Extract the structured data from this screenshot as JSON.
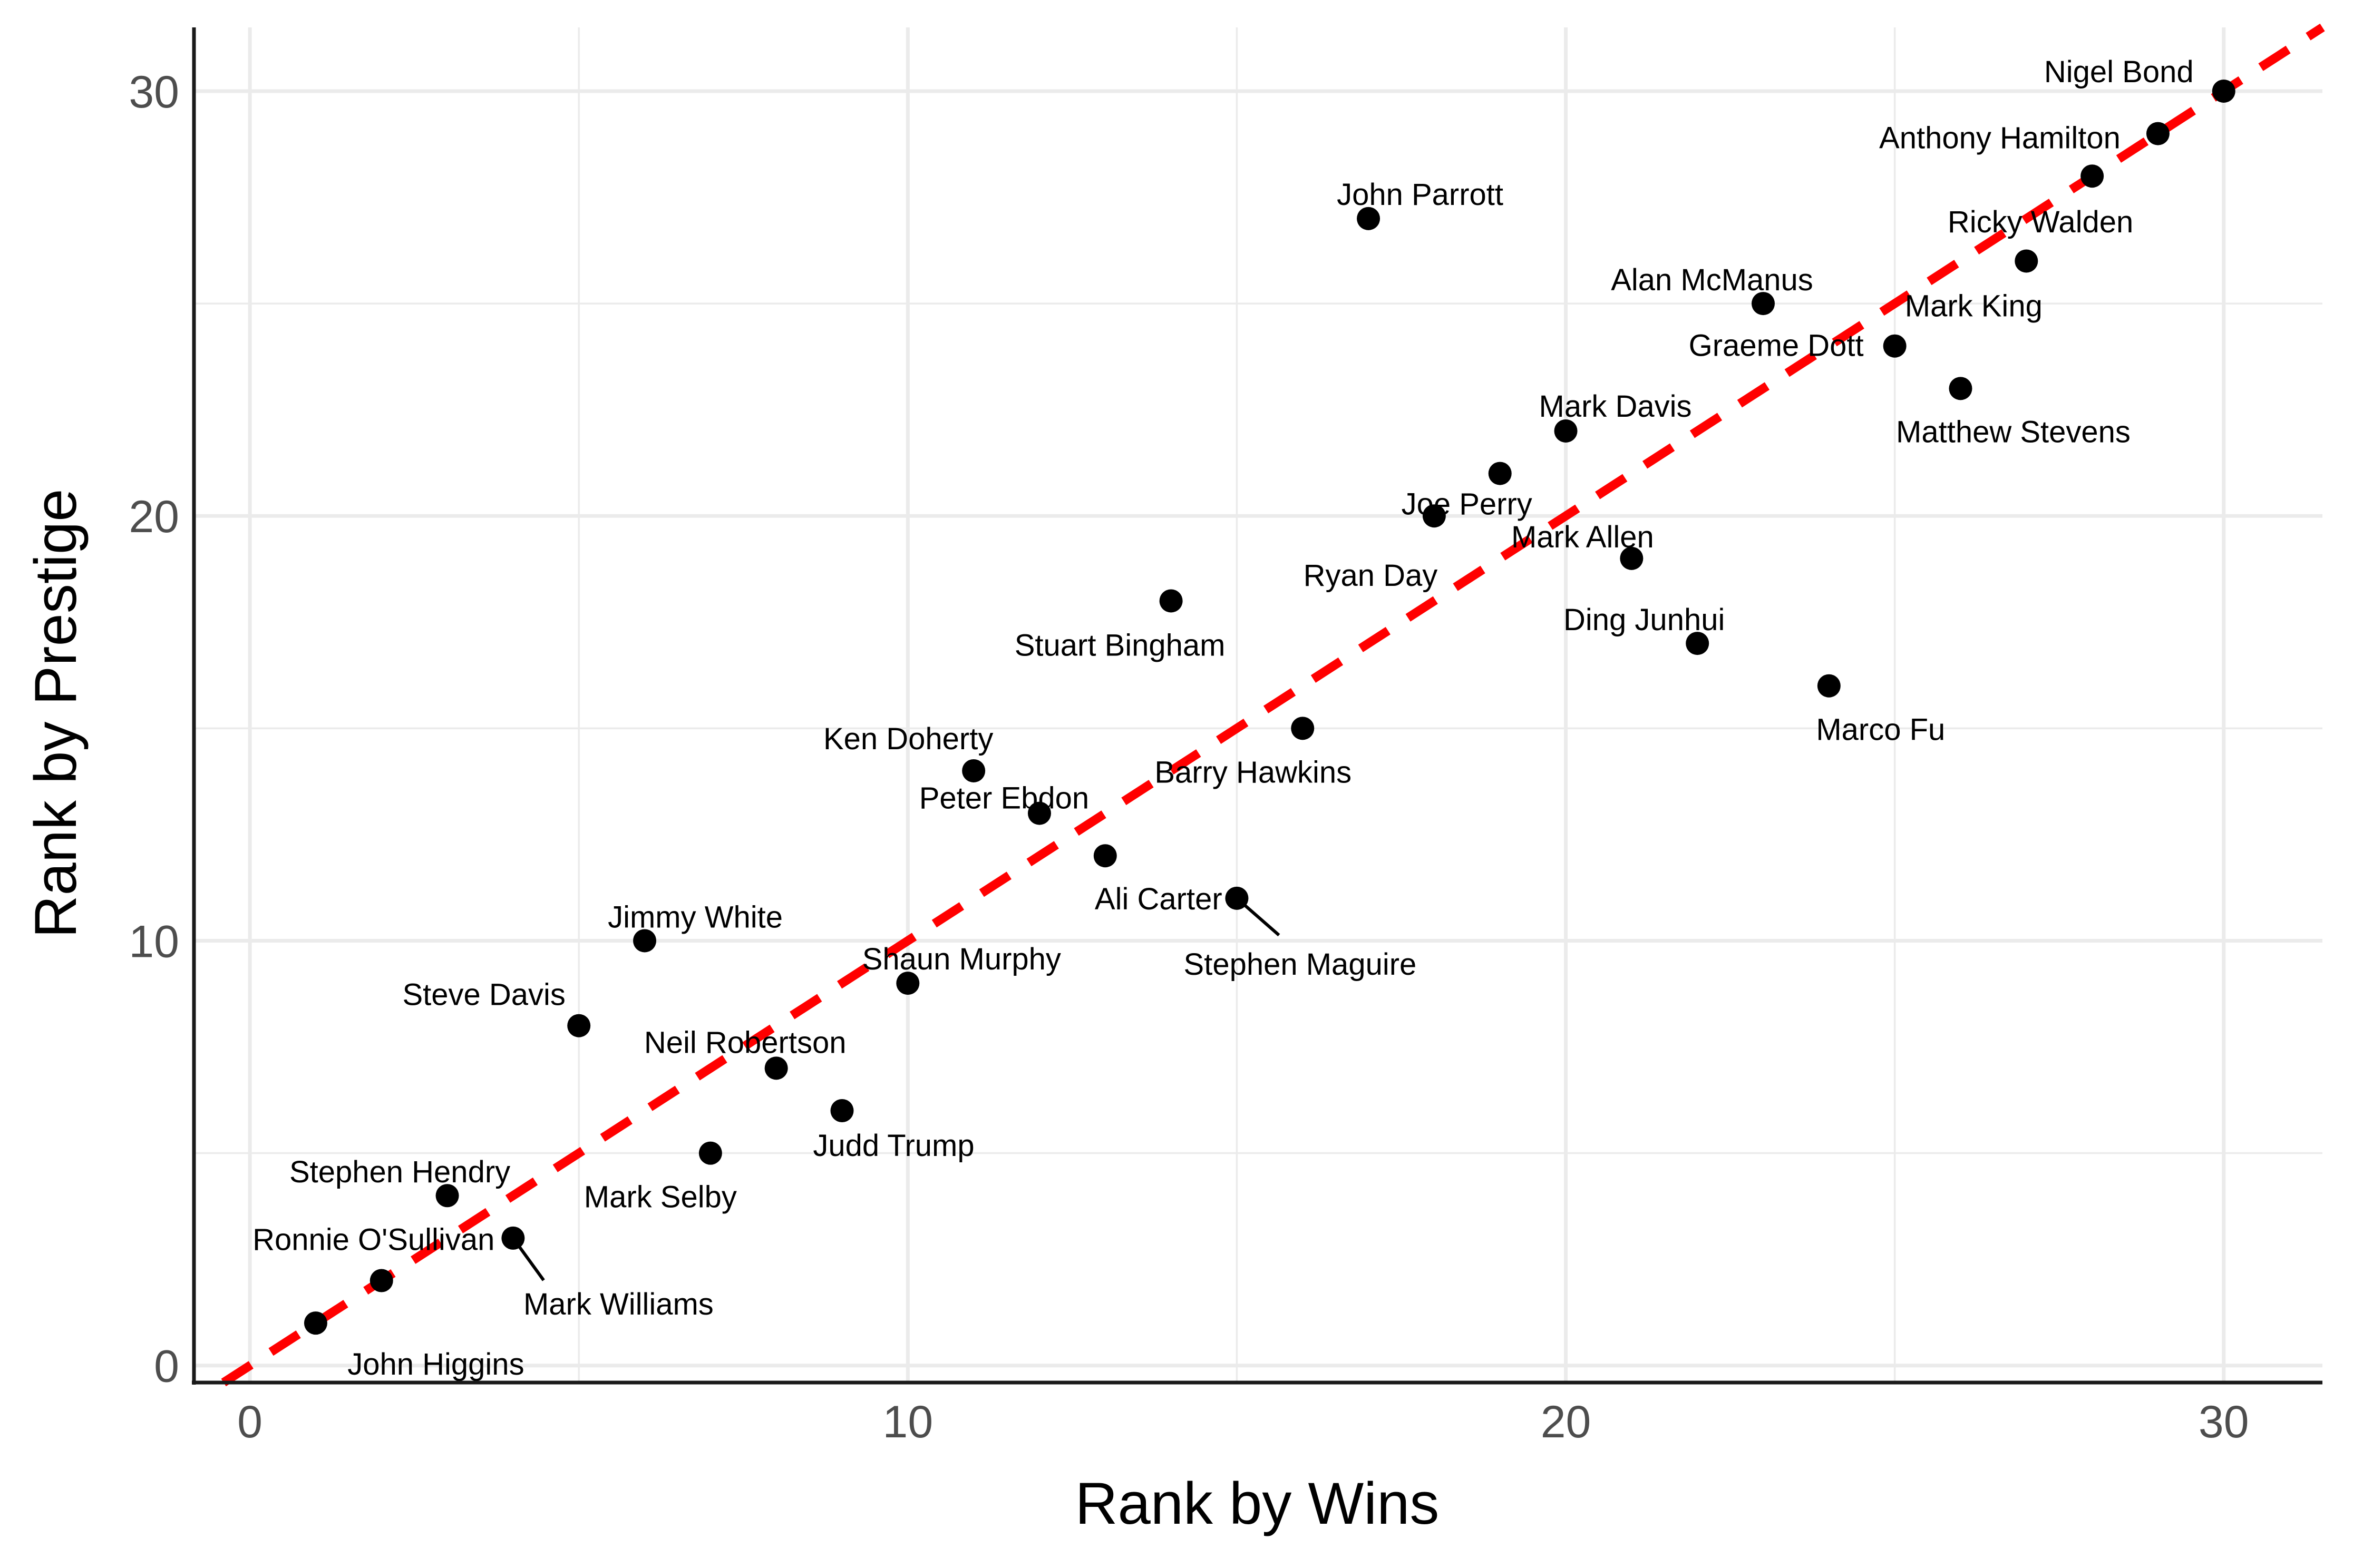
{
  "chart_data": {
    "type": "scatter",
    "title": "",
    "xlabel": "Rank by Wins",
    "ylabel": "Rank by Prestige",
    "xlim": [
      -0.85,
      31.5
    ],
    "ylim": [
      -0.4,
      31.5
    ],
    "xticks": [
      0,
      10,
      20,
      30
    ],
    "yticks": [
      0,
      10,
      20,
      30
    ],
    "grid": true,
    "reference_line": {
      "slope": 1,
      "intercept": 0,
      "style": "dashed",
      "color": "#ff0000"
    },
    "point_color": "#000000",
    "points": [
      {
        "name": "John Higgins",
        "x": 1,
        "y": 1
      },
      {
        "name": "Ronnie O'Sullivan",
        "x": 2,
        "y": 2
      },
      {
        "name": "Stephen Hendry",
        "x": 3,
        "y": 4
      },
      {
        "name": "Mark Williams",
        "x": 4,
        "y": 3
      },
      {
        "name": "Steve Davis",
        "x": 5,
        "y": 8
      },
      {
        "name": "Jimmy White",
        "x": 6,
        "y": 10
      },
      {
        "name": "Mark Selby",
        "x": 7,
        "y": 5
      },
      {
        "name": "Neil Robertson",
        "x": 8,
        "y": 7
      },
      {
        "name": "Judd Trump",
        "x": 9,
        "y": 6
      },
      {
        "name": "Shaun Murphy",
        "x": 10,
        "y": 9
      },
      {
        "name": "Ken Doherty",
        "x": 11,
        "y": 14
      },
      {
        "name": "Peter Ebdon",
        "x": 12,
        "y": 13
      },
      {
        "name": "Ali Carter",
        "x": 13,
        "y": 12
      },
      {
        "name": "Stuart Bingham",
        "x": 14,
        "y": 18
      },
      {
        "name": "Stephen Maguire",
        "x": 15,
        "y": 11
      },
      {
        "name": "Barry Hawkins",
        "x": 16,
        "y": 15
      },
      {
        "name": "John Parrott",
        "x": 17,
        "y": 27
      },
      {
        "name": "Ryan Day",
        "x": 18,
        "y": 20
      },
      {
        "name": "Joe Perry",
        "x": 19,
        "y": 21
      },
      {
        "name": "Mark Davis",
        "x": 20,
        "y": 22
      },
      {
        "name": "Mark Allen",
        "x": 21,
        "y": 19
      },
      {
        "name": "Ding Junhui",
        "x": 22,
        "y": 17
      },
      {
        "name": "Alan McManus",
        "x": 23,
        "y": 25
      },
      {
        "name": "Marco Fu",
        "x": 24,
        "y": 16
      },
      {
        "name": "Graeme Dott",
        "x": 25,
        "y": 24
      },
      {
        "name": "Matthew Stevens",
        "x": 26,
        "y": 23
      },
      {
        "name": "Mark King",
        "x": 27,
        "y": 26
      },
      {
        "name": "Ricky Walden",
        "x": 28,
        "y": 28
      },
      {
        "name": "Anthony Hamilton",
        "x": 29,
        "y": 29
      },
      {
        "name": "Nigel Bond",
        "x": 30,
        "y": 30
      }
    ]
  }
}
